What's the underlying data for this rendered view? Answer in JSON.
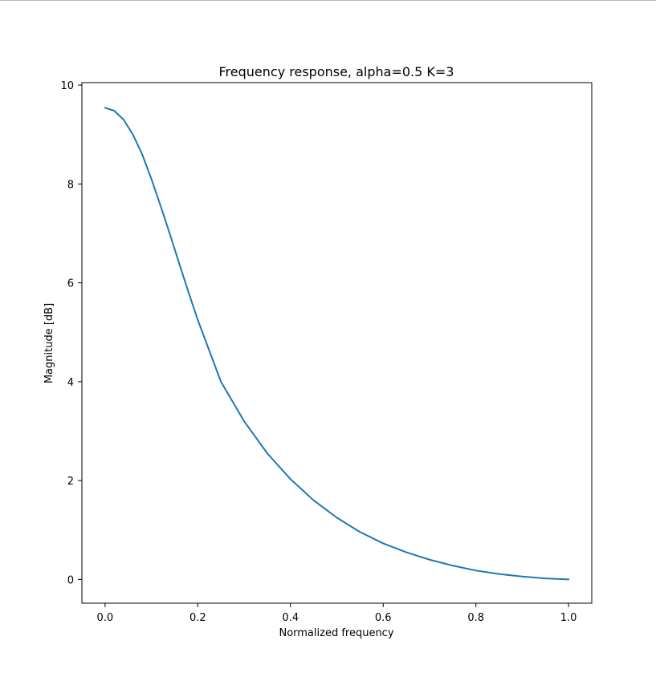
{
  "chart_data": {
    "type": "line",
    "title": "Frequency response, alpha=0.5 K=3",
    "xlabel": "Normalized frequency",
    "ylabel": "Magnitude [dB]",
    "xlim": [
      -0.05,
      1.05
    ],
    "ylim": [
      -0.48,
      10.05
    ],
    "x_ticks": [
      0.0,
      0.2,
      0.4,
      0.6,
      0.8,
      1.0
    ],
    "x_tick_labels": [
      "0.0",
      "0.2",
      "0.4",
      "0.6",
      "0.8",
      "1.0"
    ],
    "y_ticks": [
      0,
      2,
      4,
      6,
      8,
      10
    ],
    "y_tick_labels": [
      "0",
      "2",
      "4",
      "6",
      "8",
      "10"
    ],
    "grid": false,
    "series": [
      {
        "color": "#1f77b4",
        "x": [
          0.0,
          0.02,
          0.04,
          0.06,
          0.08,
          0.1,
          0.12,
          0.14,
          0.16,
          0.18,
          0.2,
          0.25,
          0.3,
          0.35,
          0.4,
          0.45,
          0.5,
          0.55,
          0.6,
          0.65,
          0.7,
          0.75,
          0.8,
          0.85,
          0.9,
          0.95,
          1.0
        ],
        "y": [
          9.54,
          9.48,
          9.3,
          9.0,
          8.6,
          8.1,
          7.55,
          6.98,
          6.39,
          5.81,
          5.25,
          4.0,
          3.2,
          2.55,
          2.03,
          1.6,
          1.25,
          0.96,
          0.73,
          0.55,
          0.4,
          0.28,
          0.18,
          0.11,
          0.06,
          0.02,
          0.0
        ]
      }
    ]
  }
}
